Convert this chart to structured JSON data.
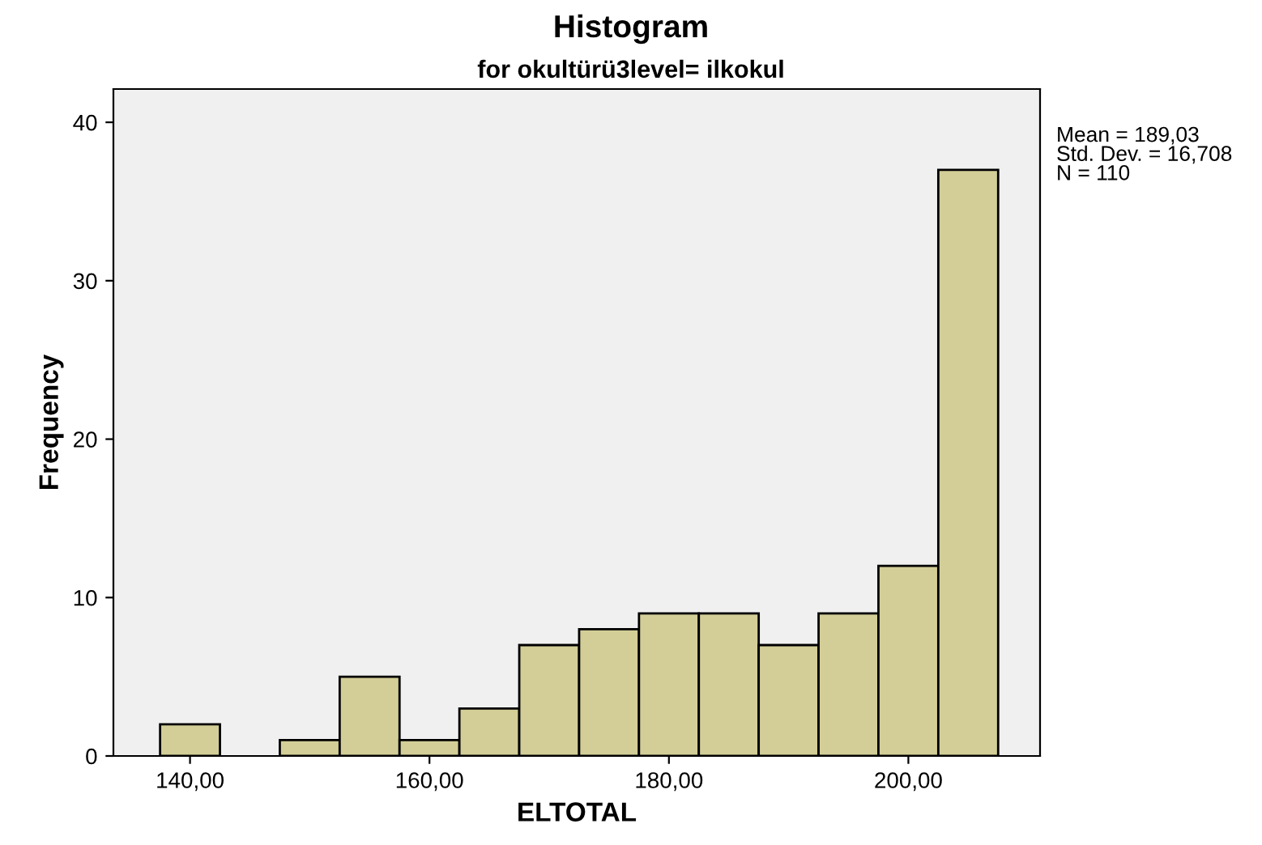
{
  "chart_data": {
    "type": "histogram",
    "title": "Histogram",
    "subtitle": "for okultürü3level= ilkokul",
    "xlabel": "ELTOTAL",
    "ylabel": "Frequency",
    "bins": [
      137.5,
      142.5,
      147.5,
      152.5,
      157.5,
      162.5,
      167.5,
      172.5,
      177.5,
      182.5,
      187.5,
      192.5,
      197.5,
      202.5,
      207.5
    ],
    "values": [
      2,
      0,
      1,
      5,
      1,
      3,
      7,
      8,
      9,
      9,
      7,
      9,
      12,
      37
    ],
    "color": "#d3ce97",
    "xlim": [
      133.6,
      211
    ],
    "ylim": [
      0,
      42.1
    ],
    "xticks": [
      {
        "value": 140,
        "label": "140,00"
      },
      {
        "value": 160,
        "label": "160,00"
      },
      {
        "value": 180,
        "label": "180,00"
      },
      {
        "value": 200,
        "label": "200,00"
      }
    ],
    "yticks": [
      0,
      10,
      20,
      30,
      40
    ],
    "annotations": [
      "Mean = 189,03\nStd. Dev. = 16,708\nN = 110"
    ],
    "grid": false,
    "legend": false
  }
}
